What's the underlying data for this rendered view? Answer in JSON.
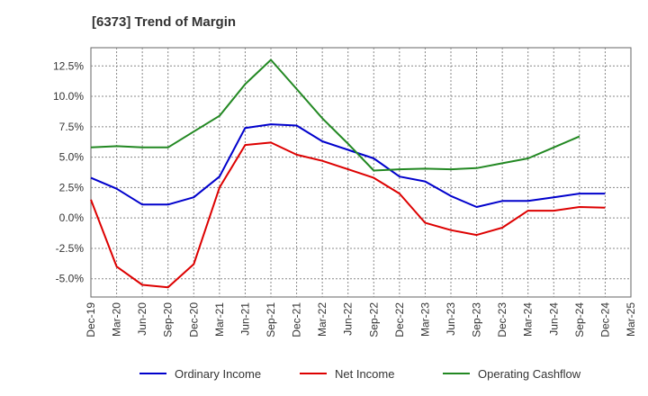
{
  "chart_data": {
    "type": "line",
    "title": "[6373]  Trend of Margin",
    "xlabel": "",
    "ylabel": "",
    "x": [
      "Dec-19",
      "Mar-20",
      "Jun-20",
      "Sep-20",
      "Dec-20",
      "Mar-21",
      "Jun-21",
      "Sep-21",
      "Dec-21",
      "Mar-22",
      "Jun-22",
      "Sep-22",
      "Dec-22",
      "Mar-23",
      "Jun-23",
      "Sep-23",
      "Dec-23",
      "Mar-24",
      "Jun-24",
      "Sep-24",
      "Dec-24",
      "Mar-25"
    ],
    "ylim": [
      -6.5,
      14.0
    ],
    "y_ticks": [
      -5.0,
      -2.5,
      0.0,
      2.5,
      5.0,
      7.5,
      10.0,
      12.5
    ],
    "y_tick_labels": [
      "-5.0%",
      "-2.5%",
      "0.0%",
      "2.5%",
      "5.0%",
      "7.5%",
      "10.0%",
      "12.5%"
    ],
    "grid": true,
    "legend_position": "bottom",
    "series": [
      {
        "name": "Ordinary Income",
        "color": "#0000cc",
        "values": [
          3.3,
          2.4,
          1.1,
          1.1,
          1.7,
          3.4,
          7.4,
          7.7,
          7.6,
          6.3,
          5.6,
          4.9,
          3.4,
          3.0,
          1.8,
          0.9,
          1.4,
          1.4,
          1.7,
          2.0,
          2.0,
          null
        ]
      },
      {
        "name": "Net Income",
        "color": "#dd0000",
        "values": [
          1.5,
          -4.0,
          -5.5,
          -5.7,
          -3.8,
          2.5,
          6.0,
          6.2,
          5.2,
          4.7,
          4.0,
          3.3,
          2.0,
          -0.4,
          -1.0,
          -1.4,
          -0.8,
          0.6,
          0.6,
          0.9,
          0.85,
          null
        ]
      },
      {
        "name": "Operating Cashflow",
        "color": "#228822",
        "values": [
          5.8,
          5.9,
          5.8,
          5.8,
          7.1,
          8.4,
          11.0,
          13.0,
          10.6,
          8.2,
          6.1,
          3.9,
          4.0,
          4.05,
          4.0,
          4.1,
          4.5,
          4.9,
          5.8,
          6.7,
          null,
          null
        ]
      }
    ]
  }
}
